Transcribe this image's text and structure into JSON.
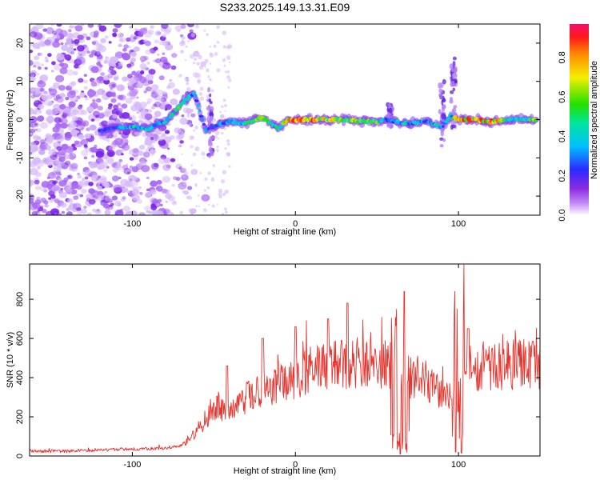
{
  "figure_title": "S233.2025.149.13.31.E09",
  "colors": {
    "snr_line": "#e8322b",
    "ridge_low": "#7a2cf0",
    "ridge_mid": "#00c8d8",
    "ridge_high": "#ff3a28",
    "noise": "#a25af5"
  },
  "chart_data": [
    {
      "type": "heatmap",
      "title": "",
      "xlabel": "Height of straight line (km)",
      "ylabel": "Frequency (Hz)",
      "xlim": [
        -163,
        150
      ],
      "ylim": [
        -25,
        25
      ],
      "x_ticks": [
        "-100",
        "0",
        "100"
      ],
      "x_tick_values": [
        -100,
        0,
        100
      ],
      "y_ticks": [
        "20",
        "10",
        "0",
        "-10",
        "-20"
      ],
      "y_tick_values": [
        20,
        10,
        0,
        -10,
        -20
      ],
      "colorbar": {
        "label": "Normalized spectral amplitude",
        "range": [
          0,
          0.97
        ],
        "ticks": [
          "0.0",
          "0.2",
          "0.4",
          "0.6",
          "0.8"
        ],
        "tick_values": [
          0,
          0.2,
          0.4,
          0.6,
          0.8
        ],
        "colormap": "rainbow (violet to red)"
      },
      "ridge": {
        "x": [
          -120,
          -110,
          -100,
          -90,
          -85,
          -80,
          -76,
          -72,
          -68,
          -62,
          -55,
          -50,
          -45,
          -40,
          -30,
          -25,
          -20,
          -15,
          -10,
          -5,
          0,
          10,
          20,
          30,
          40,
          50,
          55,
          60,
          70,
          80,
          85,
          90,
          95,
          100,
          110,
          120,
          130,
          140,
          148
        ],
        "y": [
          -3,
          -2,
          -1.8,
          -2.5,
          -1,
          -0.5,
          1,
          3,
          5,
          7,
          -3,
          -2,
          -1,
          -0.5,
          -1,
          0,
          0.5,
          -1,
          -2.5,
          0,
          0,
          0,
          0,
          0,
          -0.5,
          -0.5,
          0,
          -0.5,
          -1,
          -0.5,
          -1,
          -2,
          1,
          0,
          0,
          -0.5,
          0,
          0,
          0
        ],
        "amplitude": [
          0.25,
          0.3,
          0.45,
          0.45,
          0.35,
          0.4,
          0.45,
          0.55,
          0.5,
          0.35,
          0.3,
          0.3,
          0.35,
          0.35,
          0.5,
          0.6,
          0.7,
          0.45,
          0.5,
          0.8,
          0.95,
          0.9,
          0.7,
          0.7,
          0.7,
          0.6,
          0.3,
          0.4,
          0.45,
          0.4,
          0.5,
          0.35,
          0.35,
          0.97,
          0.97,
          0.9,
          0.6,
          0.6,
          0.7
        ]
      },
      "spikes": [
        {
          "x": -52,
          "y_range": [
            -10,
            8
          ]
        },
        {
          "x": 58,
          "y_range": [
            -2,
            4
          ]
        },
        {
          "x": 90,
          "y_range": [
            -7,
            10
          ]
        },
        {
          "x": 97,
          "y_range": [
            -2,
            16
          ]
        }
      ],
      "noise_region": {
        "x_range": [
          -163,
          -63
        ],
        "density": "high"
      }
    },
    {
      "type": "line",
      "title": "",
      "xlabel": "Height of straight line (km)",
      "ylabel": "SNR (10 * v/v)",
      "xlim": [
        -163,
        150
      ],
      "ylim": [
        0,
        980
      ],
      "x_ticks": [
        "-100",
        "0",
        "100"
      ],
      "x_tick_values": [
        -100,
        0,
        100
      ],
      "y_ticks": [
        "0",
        "200",
        "400",
        "600",
        "800"
      ],
      "y_tick_values": [
        0,
        200,
        400,
        600,
        800
      ],
      "envelope": {
        "x": [
          -163,
          -140,
          -120,
          -100,
          -80,
          -70,
          -65,
          -60,
          -55,
          -50,
          -45,
          -40,
          -35,
          -30,
          -25,
          -20,
          -10,
          0,
          10,
          20,
          30,
          40,
          50,
          55,
          60,
          62,
          65,
          70,
          75,
          80,
          85,
          90,
          95,
          100,
          102,
          105,
          110,
          120,
          130,
          140,
          150
        ],
        "y": [
          25,
          25,
          30,
          35,
          40,
          55,
          90,
          130,
          190,
          260,
          240,
          210,
          250,
          300,
          310,
          330,
          370,
          400,
          440,
          460,
          470,
          480,
          480,
          470,
          480,
          500,
          420,
          400,
          400,
          390,
          330,
          350,
          320,
          300,
          300,
          470,
          460,
          460,
          465,
          470,
          470
        ]
      },
      "peaks": [
        {
          "x": -42,
          "y": 460
        },
        {
          "x": -20,
          "y": 600
        },
        {
          "x": 0,
          "y": 660
        },
        {
          "x": 20,
          "y": 700
        },
        {
          "x": 32,
          "y": 780
        },
        {
          "x": 62,
          "y": 970
        },
        {
          "x": 67,
          "y": 840
        },
        {
          "x": 103,
          "y": 975
        },
        {
          "x": 106,
          "y": 650
        }
      ],
      "dips": [
        {
          "x": 60,
          "y": 40
        },
        {
          "x": 64,
          "y": 10
        },
        {
          "x": 68,
          "y": 20
        },
        {
          "x": 98,
          "y": 20
        },
        {
          "x": 102,
          "y": 15
        }
      ]
    }
  ]
}
